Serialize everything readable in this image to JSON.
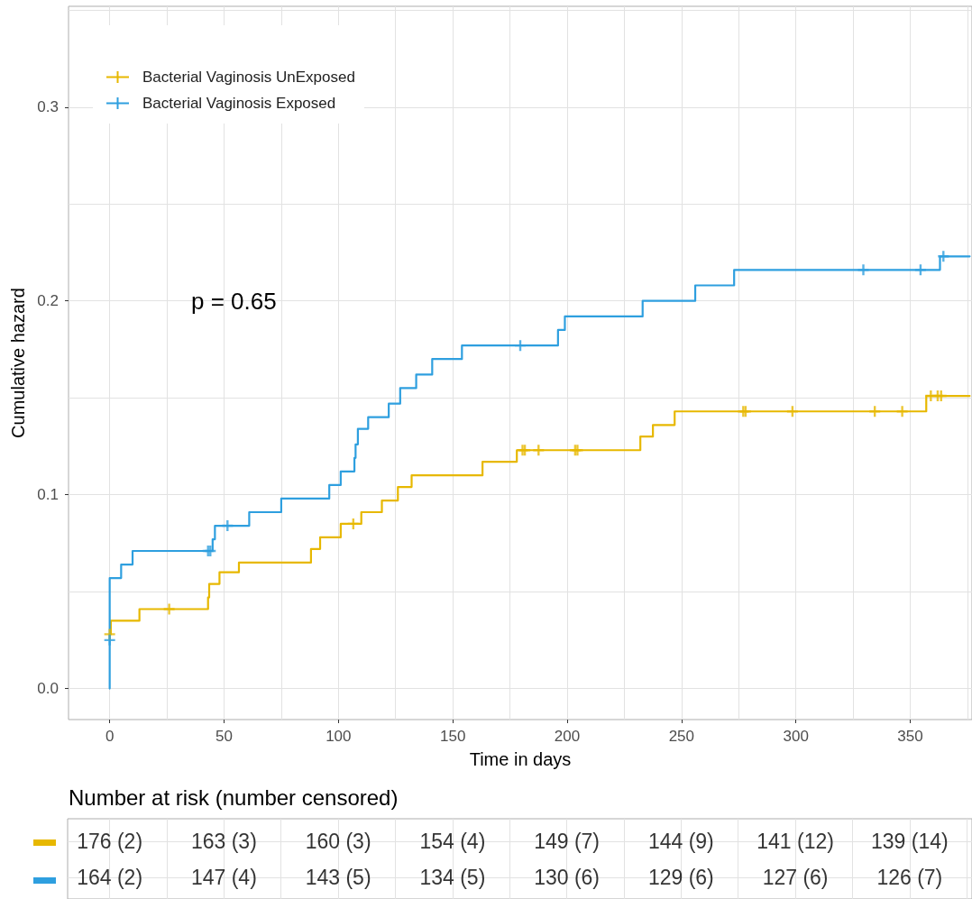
{
  "chart_data": [
    {
      "type": "step",
      "xlabel": "Time in days",
      "ylabel": "Cumulative hazard",
      "xlim": [
        -18,
        377
      ],
      "xticks": [
        0,
        50,
        100,
        150,
        200,
        250,
        300,
        350
      ],
      "ylim": [
        -0.016,
        0.352
      ],
      "yticks": [
        {
          "value": 0,
          "label": "0.0"
        },
        0.1,
        0.2,
        0.3
      ],
      "grid": true,
      "legend": "top left",
      "annotations": [
        "p = 0.65"
      ],
      "series": [
        {
          "name": "Bacterial Vaginosis UnExposed",
          "type": "step",
          "color": "#e7b800",
          "x": [
            0,
            0.5,
            13,
            43,
            43.5,
            48,
            56.5,
            88,
            92,
            101,
            110,
            119,
            126,
            132,
            163,
            178,
            232,
            237.5,
            247,
            357,
            376
          ],
          "values": [
            0.028,
            0.035,
            0.041,
            0.047,
            0.054,
            0.06,
            0.065,
            0.072,
            0.078,
            0.085,
            0.091,
            0.097,
            0.104,
            0.11,
            0.117,
            0.123,
            0.13,
            0.136,
            0.143,
            0.151,
            0.151
          ]
        },
        {
          "name": "Bacterial Vaginosis Exposed",
          "type": "step",
          "color": "#2e9fdf",
          "x": [
            0,
            0,
            5,
            10,
            45,
            46,
            61,
            75,
            96,
            101,
            107,
            107.5,
            108.5,
            113,
            122,
            127,
            134,
            141,
            154,
            196,
            199,
            233,
            256,
            273,
            363,
            376
          ],
          "values": [
            0,
            0.057,
            0.064,
            0.071,
            0.077,
            0.084,
            0.091,
            0.098,
            0.105,
            0.112,
            0.119,
            0.126,
            0.134,
            0.14,
            0.147,
            0.155,
            0.162,
            0.17,
            0.177,
            0.185,
            0.192,
            0.2,
            0.208,
            0.216,
            0.223,
            0.223
          ]
        },
        {
          "type": "scatter",
          "marker": "cross",
          "color": "#e7b800",
          "x": [
            0,
            26,
            106.5,
            180.5,
            181.5,
            187.5,
            203.5,
            204.5,
            277,
            278,
            298.5,
            334.5,
            346.5,
            359,
            362,
            363.5
          ],
          "values": [
            0.028,
            0.041,
            0.085,
            0.123,
            0.123,
            0.123,
            0.123,
            0.123,
            0.143,
            0.143,
            0.143,
            0.143,
            0.143,
            0.151,
            0.151,
            0.151
          ]
        },
        {
          "type": "scatter",
          "marker": "cross",
          "color": "#2e9fdf",
          "x": [
            0,
            43,
            44,
            51.5,
            179.5,
            329.5,
            354.5,
            364.5
          ],
          "values": [
            0.025,
            0.071,
            0.071,
            0.084,
            0.177,
            0.216,
            0.216,
            0.223
          ]
        }
      ]
    },
    {
      "type": "other",
      "title": "Number at risk (number censored)",
      "colors": [
        "#e7b800",
        "#2e9fdf"
      ],
      "annotations": [
        "176 (2)",
        "163 (3)",
        "160 (3)",
        "154 (4)",
        "149 (7)",
        "144 (9)",
        "141 (12)",
        "139 (14)",
        "164 (2)",
        "147 (4)",
        "143 (5)",
        "134 (5)",
        "130 (6)",
        "129 (6)",
        "127 (6)",
        "126 (7)"
      ]
    }
  ]
}
